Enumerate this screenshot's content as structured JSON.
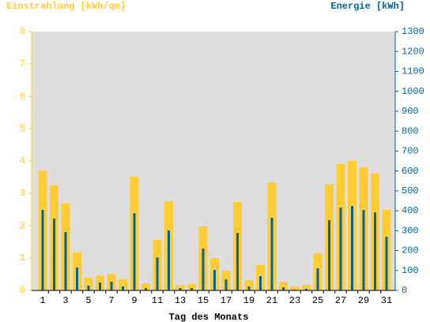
{
  "chart_data": {
    "type": "bar",
    "ylabel": "Einstrahlung [kWh/qm]",
    "y2label": "Energie [kWh]",
    "xlabel": "Tag des Monats",
    "categories": [
      1,
      null,
      3,
      null,
      5,
      null,
      7,
      null,
      9,
      null,
      11,
      null,
      13,
      null,
      15,
      null,
      17,
      null,
      19,
      null,
      21,
      null,
      23,
      null,
      25,
      null,
      27,
      null,
      29,
      null,
      31
    ],
    "series": [
      {
        "color": "#ffcc33",
        "axis": "y",
        "values": [
          3.7,
          3.25,
          2.68,
          1.17,
          0.39,
          0.46,
          0.51,
          0.34,
          3.51,
          0.22,
          1.56,
          2.76,
          0.17,
          0.2,
          1.98,
          1.0,
          0.61,
          2.73,
          0.32,
          0.78,
          3.34,
          0.27,
          0.12,
          0.17,
          1.15,
          3.29,
          3.9,
          4.0,
          3.8,
          3.61,
          2.49
        ]
      },
      {
        "color": "#006699",
        "axis": "y2",
        "values": [
          404,
          361,
          293,
          115,
          24,
          40,
          44,
          20,
          388,
          12,
          166,
          301,
          12,
          12,
          210,
          103,
          55,
          289,
          20,
          71,
          365,
          16,
          4,
          8,
          111,
          353,
          416,
          424,
          404,
          392,
          270
        ]
      }
    ],
    "ylim": [
      0,
      8
    ],
    "yticks": [
      0,
      1,
      2,
      3,
      4,
      5,
      6,
      7,
      8
    ],
    "y2lim": [
      0,
      1300
    ],
    "y2ticks": [
      0,
      100,
      200,
      300,
      400,
      500,
      600,
      700,
      800,
      900,
      1000,
      1100,
      1200,
      1300
    ],
    "grid": false
  }
}
